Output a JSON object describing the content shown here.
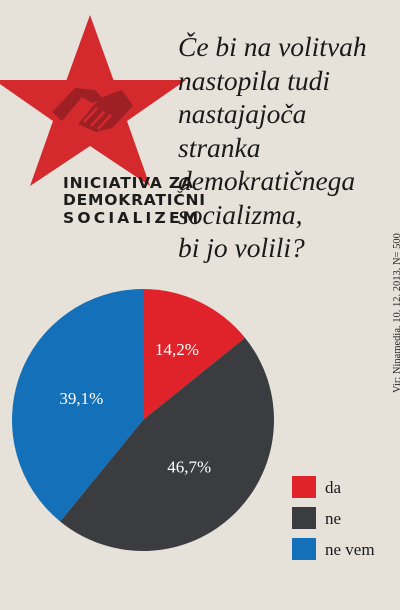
{
  "logo": {
    "lines": [
      "INICIATIVA ZA",
      "DEMOKRATIČNI",
      "SOCIALIZEM"
    ],
    "star_color": "#d42a2e",
    "hands_color": "#9e2024"
  },
  "question_lines": [
    "Če bi na volitvah",
    "nastopila tudi",
    "nastajajoča",
    "stranka",
    "demokratičnega",
    "socializma,",
    "bi jo volili?"
  ],
  "source": "Vir: Ninamedia, 10. 12. 2013, N= 500",
  "chart_data": {
    "type": "pie",
    "start_angle_deg": 0,
    "direction": "clockwise",
    "categories": [
      "da",
      "ne",
      "ne vem"
    ],
    "values": [
      14.2,
      46.7,
      39.1
    ],
    "value_labels": [
      "14,2%",
      "46,7%",
      "39,1%"
    ],
    "colors": [
      "#e0232b",
      "#3b3c40",
      "#1470b8"
    ],
    "legend_position": "bottom-right",
    "legend": [
      {
        "label": "da",
        "color": "#e0232b"
      },
      {
        "label": "ne",
        "color": "#3b3c40"
      },
      {
        "label": "ne vem",
        "color": "#1470b8"
      }
    ]
  }
}
